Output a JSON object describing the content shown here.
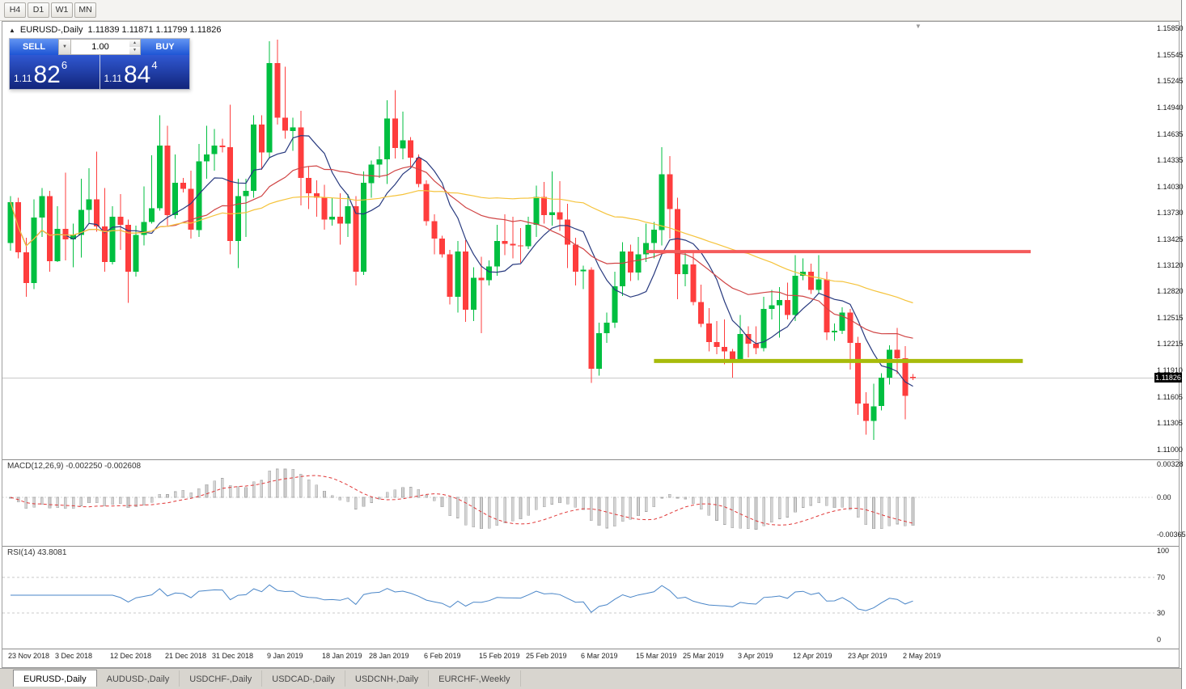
{
  "toolbar": {
    "timeframes": [
      "H4",
      "D1",
      "W1",
      "MN"
    ]
  },
  "chart": {
    "collapse_icon": "▲",
    "title": "EURUSD-,Daily",
    "ohlc_text": "1.11839 1.11871 1.11799 1.11826",
    "scroll_marker": "▼"
  },
  "one_click": {
    "sell_label": "SELL",
    "buy_label": "BUY",
    "volume": "1.00",
    "dropdown_icon": "▼",
    "spin_up": "▲",
    "spin_down": "▼",
    "sell_price_main": "1.11",
    "sell_price_big": "82",
    "sell_price_sup": "6",
    "buy_price_main": "1.11",
    "buy_price_big": "84",
    "buy_price_sup": "4"
  },
  "price_axis": {
    "ticks": [
      "1.15850",
      "1.15545",
      "1.15245",
      "1.14940",
      "1.14635",
      "1.14335",
      "1.14030",
      "1.13730",
      "1.13425",
      "1.13120",
      "1.12820",
      "1.12515",
      "1.12215",
      "1.11910",
      "1.11605",
      "1.11305",
      "1.11000"
    ],
    "current": "1.11826"
  },
  "macd": {
    "label": "MACD(12,26,9) -0.002250 -0.002608",
    "axis": [
      "0.00328",
      "0.00",
      "-0.00365"
    ]
  },
  "rsi": {
    "label": "RSI(14) 43.8081",
    "axis": [
      "100",
      "70",
      "30",
      "0"
    ]
  },
  "date_axis": [
    {
      "label": "23 Nov 2018",
      "index": 0
    },
    {
      "label": "3 Dec 2018",
      "index": 6
    },
    {
      "label": "12 Dec 2018",
      "index": 13
    },
    {
      "label": "21 Dec 2018",
      "index": 20
    },
    {
      "label": "31 Dec 2018",
      "index": 26
    },
    {
      "label": "9 Jan 2019",
      "index": 33
    },
    {
      "label": "18 Jan 2019",
      "index": 40
    },
    {
      "label": "28 Jan 2019",
      "index": 46
    },
    {
      "label": "6 Feb 2019",
      "index": 53
    },
    {
      "label": "15 Feb 2019",
      "index": 60
    },
    {
      "label": "25 Feb 2019",
      "index": 66
    },
    {
      "label": "6 Mar 2019",
      "index": 73
    },
    {
      "label": "15 Mar 2019",
      "index": 80
    },
    {
      "label": "25 Mar 2019",
      "index": 86
    },
    {
      "label": "3 Apr 2019",
      "index": 93
    },
    {
      "label": "12 Apr 2019",
      "index": 100
    },
    {
      "label": "23 Apr 2019",
      "index": 107
    },
    {
      "label": "2 May 2019",
      "index": 114
    }
  ],
  "tabs": [
    {
      "label": "EURUSD-,Daily",
      "active": true
    },
    {
      "label": "AUDUSD-,Daily",
      "active": false
    },
    {
      "label": "USDCHF-,Daily",
      "active": false
    },
    {
      "label": "USDCAD-,Daily",
      "active": false
    },
    {
      "label": "USDCNH-,Daily",
      "active": false
    },
    {
      "label": "EURCHF-,Weekly",
      "active": false
    }
  ],
  "colors": {
    "candle_up": "#00bf40",
    "candle_down": "#fe3d3d",
    "macd_hist": "#d4d4d4",
    "macd_signal": "#e03636",
    "rsi_line": "#4a86c8",
    "accent_blue": "#1e55d4",
    "price_tag_bg": "#000000"
  },
  "chart_data": {
    "type": "candlestick",
    "symbol": "EURUSD",
    "timeframe": "Daily",
    "title": "EURUSD-,Daily",
    "ylim": [
      1.11,
      1.1585
    ],
    "current_price": 1.11826,
    "dates": [
      "2018-11-23",
      "2018-11-26",
      "2018-11-27",
      "2018-11-28",
      "2018-11-29",
      "2018-11-30",
      "2018-12-03",
      "2018-12-04",
      "2018-12-05",
      "2018-12-06",
      "2018-12-07",
      "2018-12-10",
      "2018-12-11",
      "2018-12-12",
      "2018-12-13",
      "2018-12-14",
      "2018-12-17",
      "2018-12-18",
      "2018-12-19",
      "2018-12-20",
      "2018-12-21",
      "2018-12-24",
      "2018-12-25",
      "2018-12-26",
      "2018-12-27",
      "2018-12-28",
      "2018-12-31",
      "2019-01-01",
      "2019-01-02",
      "2019-01-03",
      "2019-01-04",
      "2019-01-07",
      "2019-01-08",
      "2019-01-09",
      "2019-01-10",
      "2019-01-11",
      "2019-01-14",
      "2019-01-15",
      "2019-01-16",
      "2019-01-17",
      "2019-01-18",
      "2019-01-21",
      "2019-01-22",
      "2019-01-23",
      "2019-01-24",
      "2019-01-25",
      "2019-01-28",
      "2019-01-29",
      "2019-01-30",
      "2019-01-31",
      "2019-02-01",
      "2019-02-04",
      "2019-02-05",
      "2019-02-06",
      "2019-02-07",
      "2019-02-08",
      "2019-02-11",
      "2019-02-12",
      "2019-02-13",
      "2019-02-14",
      "2019-02-15",
      "2019-02-18",
      "2019-02-19",
      "2019-02-20",
      "2019-02-21",
      "2019-02-22",
      "2019-02-25",
      "2019-02-26",
      "2019-02-27",
      "2019-02-28",
      "2019-03-01",
      "2019-03-04",
      "2019-03-05",
      "2019-03-06",
      "2019-03-07",
      "2019-03-08",
      "2019-03-11",
      "2019-03-12",
      "2019-03-13",
      "2019-03-14",
      "2019-03-15",
      "2019-03-18",
      "2019-03-19",
      "2019-03-20",
      "2019-03-21",
      "2019-03-22",
      "2019-03-25",
      "2019-03-26",
      "2019-03-27",
      "2019-03-28",
      "2019-03-29",
      "2019-04-01",
      "2019-04-02",
      "2019-04-03",
      "2019-04-04",
      "2019-04-05",
      "2019-04-08",
      "2019-04-09",
      "2019-04-10",
      "2019-04-11",
      "2019-04-12",
      "2019-04-15",
      "2019-04-16",
      "2019-04-17",
      "2019-04-18",
      "2019-04-19",
      "2019-04-22",
      "2019-04-23",
      "2019-04-24",
      "2019-04-25",
      "2019-04-26",
      "2019-04-29",
      "2019-04-30",
      "2019-05-01",
      "2019-05-02",
      "2019-05-03"
    ],
    "ohlc": [
      [
        1.1338,
        1.1392,
        1.1329,
        1.1385
      ],
      [
        1.1385,
        1.139,
        1.132,
        1.1327
      ],
      [
        1.1327,
        1.1344,
        1.1276,
        1.1292
      ],
      [
        1.1292,
        1.1388,
        1.1285,
        1.1367
      ],
      [
        1.1367,
        1.1401,
        1.1345,
        1.1392
      ],
      [
        1.1392,
        1.1398,
        1.1305,
        1.1317
      ],
      [
        1.1317,
        1.138,
        1.1316,
        1.1354
      ],
      [
        1.1354,
        1.1419,
        1.1318,
        1.1342
      ],
      [
        1.1342,
        1.136,
        1.131,
        1.1347
      ],
      [
        1.1347,
        1.1412,
        1.1321,
        1.1376
      ],
      [
        1.1376,
        1.1424,
        1.136,
        1.1388
      ],
      [
        1.1388,
        1.1443,
        1.1351,
        1.1357
      ],
      [
        1.1357,
        1.1401,
        1.1305,
        1.1316
      ],
      [
        1.1316,
        1.138,
        1.1313,
        1.1368
      ],
      [
        1.1368,
        1.1394,
        1.133,
        1.1359
      ],
      [
        1.1359,
        1.1365,
        1.1269,
        1.1305
      ],
      [
        1.1305,
        1.1358,
        1.1299,
        1.1347
      ],
      [
        1.1347,
        1.1403,
        1.1335,
        1.1362
      ],
      [
        1.1362,
        1.1439,
        1.136,
        1.1378
      ],
      [
        1.1378,
        1.1485,
        1.1375,
        1.145
      ],
      [
        1.145,
        1.1473,
        1.1358,
        1.137
      ],
      [
        1.137,
        1.144,
        1.1366,
        1.1407
      ],
      [
        1.1407,
        1.1413,
        1.1396,
        1.14
      ],
      [
        1.14,
        1.1421,
        1.1343,
        1.1353
      ],
      [
        1.1353,
        1.1452,
        1.1345,
        1.1432
      ],
      [
        1.1432,
        1.1473,
        1.1412,
        1.144
      ],
      [
        1.144,
        1.1469,
        1.1421,
        1.145
      ],
      [
        1.145,
        1.1458,
        1.1442,
        1.1448
      ],
      [
        1.1448,
        1.1497,
        1.1325,
        1.134
      ],
      [
        1.134,
        1.1412,
        1.1309,
        1.1392
      ],
      [
        1.1392,
        1.1412,
        1.1345,
        1.1398
      ],
      [
        1.1398,
        1.1485,
        1.139,
        1.1474
      ],
      [
        1.1474,
        1.1485,
        1.1422,
        1.1442
      ],
      [
        1.1442,
        1.157,
        1.1435,
        1.1545
      ],
      [
        1.1545,
        1.1572,
        1.1474,
        1.1482
      ],
      [
        1.1482,
        1.1541,
        1.1458,
        1.1467
      ],
      [
        1.1467,
        1.1482,
        1.1444,
        1.1471
      ],
      [
        1.1471,
        1.149,
        1.1381,
        1.1413
      ],
      [
        1.1413,
        1.1426,
        1.1377,
        1.1395
      ],
      [
        1.1395,
        1.141,
        1.1368,
        1.139
      ],
      [
        1.139,
        1.1405,
        1.1353,
        1.1365
      ],
      [
        1.1365,
        1.139,
        1.1358,
        1.1368
      ],
      [
        1.1368,
        1.1395,
        1.1336,
        1.136
      ],
      [
        1.136,
        1.1394,
        1.1345,
        1.138
      ],
      [
        1.138,
        1.1392,
        1.1289,
        1.1305
      ],
      [
        1.1305,
        1.142,
        1.1301,
        1.1407
      ],
      [
        1.1407,
        1.1433,
        1.139,
        1.1428
      ],
      [
        1.1428,
        1.1449,
        1.1413,
        1.1434
      ],
      [
        1.1434,
        1.1502,
        1.1406,
        1.1481
      ],
      [
        1.1481,
        1.1514,
        1.1435,
        1.1447
      ],
      [
        1.1447,
        1.1489,
        1.1434,
        1.1456
      ],
      [
        1.1456,
        1.146,
        1.1425,
        1.1436
      ],
      [
        1.1436,
        1.144,
        1.1402,
        1.1406
      ],
      [
        1.1406,
        1.141,
        1.1358,
        1.1363
      ],
      [
        1.1363,
        1.1371,
        1.1325,
        1.1343
      ],
      [
        1.1343,
        1.1346,
        1.1321,
        1.1325
      ],
      [
        1.1325,
        1.133,
        1.1267,
        1.1276
      ],
      [
        1.1276,
        1.134,
        1.1258,
        1.1328
      ],
      [
        1.1328,
        1.1341,
        1.1247,
        1.1261
      ],
      [
        1.1261,
        1.131,
        1.1248,
        1.1298
      ],
      [
        1.1298,
        1.1322,
        1.1234,
        1.1295
      ],
      [
        1.1295,
        1.1318,
        1.1289,
        1.1311
      ],
      [
        1.1311,
        1.1359,
        1.13,
        1.134
      ],
      [
        1.134,
        1.1371,
        1.1324,
        1.1337
      ],
      [
        1.1337,
        1.1368,
        1.132,
        1.1335
      ],
      [
        1.1335,
        1.1355,
        1.1315,
        1.1334
      ],
      [
        1.1334,
        1.1368,
        1.1331,
        1.1359
      ],
      [
        1.1359,
        1.1404,
        1.1345,
        1.1391
      ],
      [
        1.1391,
        1.1408,
        1.136,
        1.137
      ],
      [
        1.137,
        1.142,
        1.1358,
        1.1373
      ],
      [
        1.1373,
        1.1409,
        1.1352,
        1.1365
      ],
      [
        1.1365,
        1.1383,
        1.1309,
        1.1336
      ],
      [
        1.1336,
        1.1344,
        1.1289,
        1.1305
      ],
      [
        1.1305,
        1.1312,
        1.1285,
        1.1307
      ],
      [
        1.1307,
        1.131,
        1.1177,
        1.1193
      ],
      [
        1.1193,
        1.1246,
        1.1185,
        1.1234
      ],
      [
        1.1234,
        1.1258,
        1.1223,
        1.1246
      ],
      [
        1.1246,
        1.1305,
        1.124,
        1.1288
      ],
      [
        1.1288,
        1.1339,
        1.1277,
        1.1328
      ],
      [
        1.1328,
        1.1336,
        1.1294,
        1.1304
      ],
      [
        1.1304,
        1.1345,
        1.1295,
        1.1325
      ],
      [
        1.1325,
        1.136,
        1.1316,
        1.1338
      ],
      [
        1.1338,
        1.1362,
        1.132,
        1.1353
      ],
      [
        1.1353,
        1.1448,
        1.1335,
        1.1417
      ],
      [
        1.1417,
        1.1438,
        1.1343,
        1.1377
      ],
      [
        1.1377,
        1.139,
        1.1273,
        1.1302
      ],
      [
        1.1302,
        1.133,
        1.1288,
        1.1313
      ],
      [
        1.1313,
        1.1327,
        1.1266,
        1.127
      ],
      [
        1.127,
        1.129,
        1.1241,
        1.1245
      ],
      [
        1.1245,
        1.1263,
        1.1213,
        1.1224
      ],
      [
        1.1224,
        1.1248,
        1.121,
        1.1218
      ],
      [
        1.1218,
        1.125,
        1.1198,
        1.1213
      ],
      [
        1.1213,
        1.1216,
        1.1183,
        1.1204
      ],
      [
        1.1204,
        1.1255,
        1.12,
        1.1233
      ],
      [
        1.1233,
        1.1242,
        1.1206,
        1.1222
      ],
      [
        1.1222,
        1.1242,
        1.121,
        1.1217
      ],
      [
        1.1217,
        1.1276,
        1.1213,
        1.1262
      ],
      [
        1.1262,
        1.1284,
        1.125,
        1.1266
      ],
      [
        1.1266,
        1.1287,
        1.1229,
        1.1272
      ],
      [
        1.1272,
        1.1292,
        1.125,
        1.1255
      ],
      [
        1.1255,
        1.1324,
        1.1248,
        1.13
      ],
      [
        1.13,
        1.132,
        1.1295,
        1.1305
      ],
      [
        1.1305,
        1.1314,
        1.1279,
        1.1284
      ],
      [
        1.1284,
        1.1324,
        1.128,
        1.1296
      ],
      [
        1.1296,
        1.1305,
        1.1226,
        1.1235
      ],
      [
        1.1235,
        1.1245,
        1.1225,
        1.1237
      ],
      [
        1.1237,
        1.1264,
        1.1233,
        1.1258
      ],
      [
        1.1258,
        1.1262,
        1.1192,
        1.1223
      ],
      [
        1.1223,
        1.123,
        1.114,
        1.1153
      ],
      [
        1.1153,
        1.1166,
        1.1117,
        1.1133
      ],
      [
        1.1133,
        1.1176,
        1.1111,
        1.115
      ],
      [
        1.115,
        1.1188,
        1.1145,
        1.1183
      ],
      [
        1.1183,
        1.122,
        1.1175,
        1.1215
      ],
      [
        1.1215,
        1.124,
        1.1187,
        1.1205
      ],
      [
        1.1205,
        1.1219,
        1.1135,
        1.1162
      ],
      [
        1.11839,
        1.11871,
        1.11799,
        1.11826
      ]
    ],
    "overlays": {
      "ma_fast": {
        "type": "SMA",
        "period": 8,
        "color": "#27397e"
      },
      "ma_mid": {
        "type": "SMA",
        "period": 21,
        "color": "#d04545"
      },
      "ma_slow": {
        "type": "SMA",
        "period": 50,
        "color": "#f5c33b"
      },
      "hline_resistance": {
        "price": 1.1328,
        "color": "#f45b5b",
        "from_index": 81,
        "to_index": 130
      },
      "hline_support": {
        "price": 1.1202,
        "color": "#a8bb0b",
        "from_index": 82,
        "to_index": 129
      }
    },
    "indicators": [
      {
        "name": "MACD",
        "params": [
          12,
          26,
          9
        ],
        "value": -0.00225,
        "signal": -0.002608
      },
      {
        "name": "RSI",
        "params": [
          14
        ],
        "value": 43.8081
      }
    ]
  }
}
